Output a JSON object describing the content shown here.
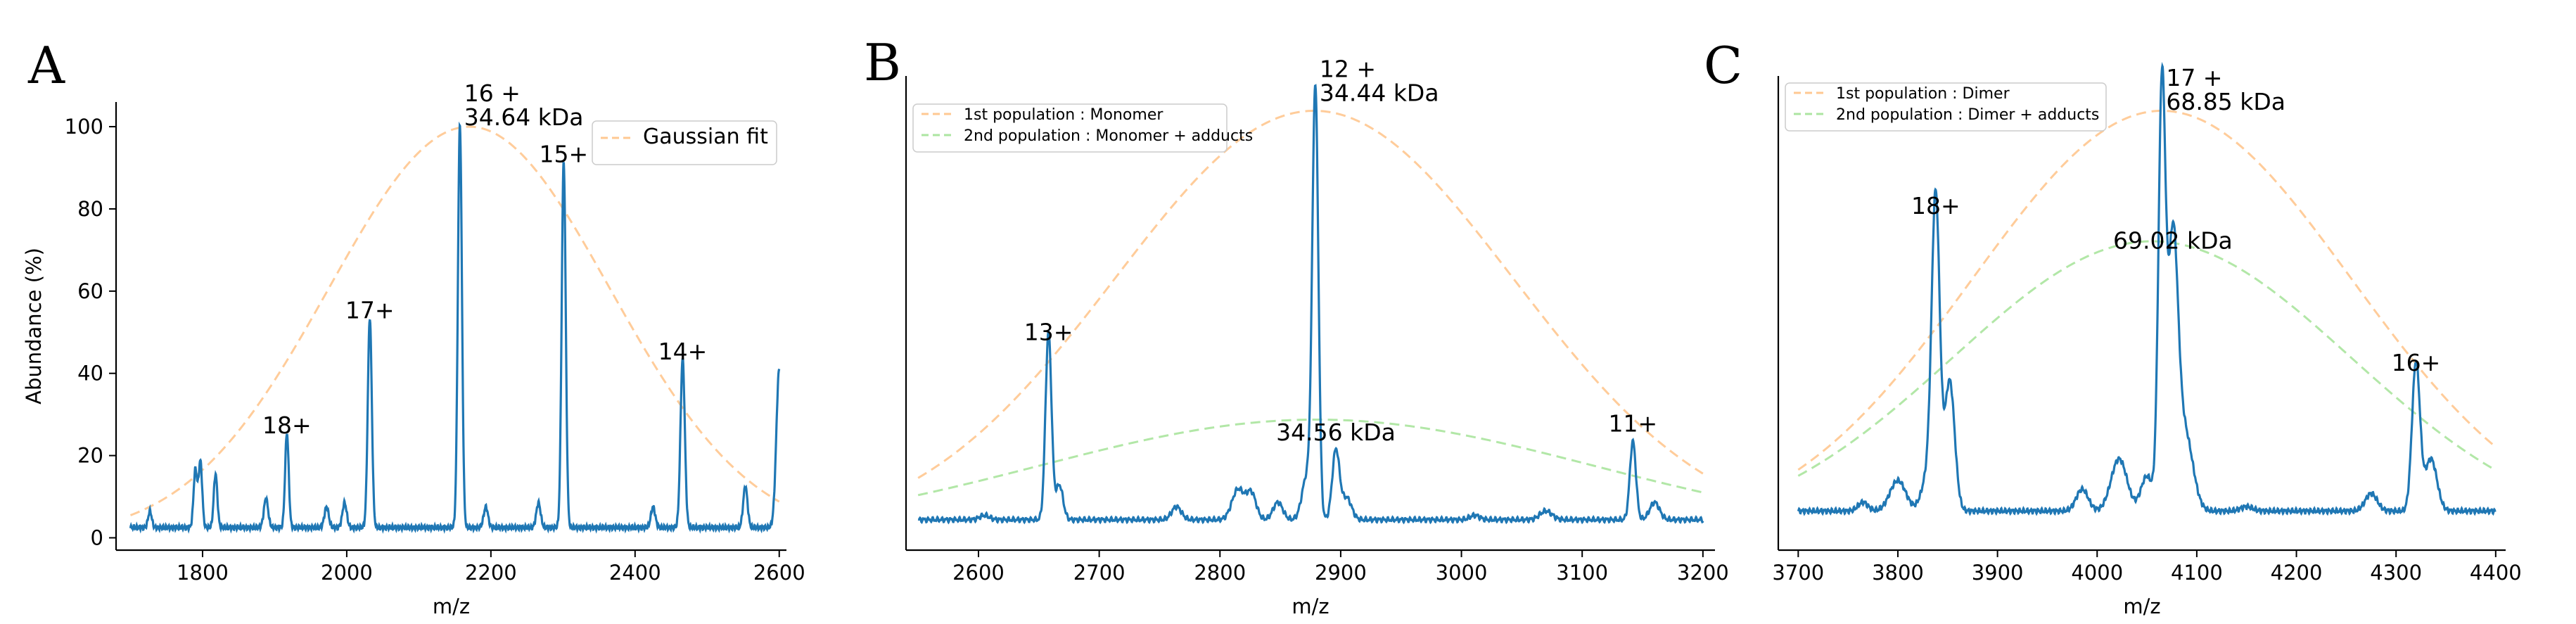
{
  "chart_data": [
    {
      "type": "line",
      "panel_label": "A",
      "xlabel": "m/z",
      "ylabel": "Abundance (%)",
      "xlim": [
        1680,
        2610
      ],
      "ylim": [
        -3,
        106
      ],
      "x_ticks": [
        1800,
        2000,
        2200,
        2400,
        2600
      ],
      "y_ticks": [
        0,
        20,
        40,
        60,
        80,
        100
      ],
      "legend_position": "top-right",
      "series": [
        {
          "name": "Gaussian fit",
          "style": "dashed",
          "color": "#ffbb78",
          "gaussian": {
            "amplitude": 100,
            "center": 2170,
            "sigma": 195,
            "baseline": 0,
            "x_range": [
              1700,
              2600
            ]
          }
        },
        {
          "name": "",
          "style": "solid",
          "color": "#1f77b4",
          "baseline": 2.5,
          "x_range": [
            1700,
            2600
          ],
          "peaks": [
            [
              1727,
              4,
              2.5
            ],
            [
              1790,
              14,
              2.5
            ],
            [
              1797,
              16,
              2.5
            ],
            [
              1818,
              13,
              2.5
            ],
            [
              1888,
              7,
              3
            ],
            [
              1917,
              23,
              2.5
            ],
            [
              1972,
              5,
              3
            ],
            [
              1997,
              6,
              3
            ],
            [
              2032,
              51,
              2.8
            ],
            [
              2157,
              98,
              2.8
            ],
            [
              2193,
              5,
              3
            ],
            [
              2266,
              6,
              3
            ],
            [
              2301,
              89,
              2.8
            ],
            [
              2425,
              5,
              3
            ],
            [
              2466,
              41,
              3
            ],
            [
              2553,
              10,
              3
            ]
          ],
          "tail_end": [
            2600,
            41
          ]
        }
      ],
      "annotations": [
        {
          "lines": [
            "16 +",
            "34.64 kDa"
          ],
          "x": 2157,
          "y": 98
        },
        {
          "lines": [
            "15+"
          ],
          "x": 2301,
          "y": 89
        },
        {
          "lines": [
            "17+"
          ],
          "x": 2032,
          "y": 51
        },
        {
          "lines": [
            "14+"
          ],
          "x": 2466,
          "y": 41
        },
        {
          "lines": [
            "18+"
          ],
          "x": 1917,
          "y": 23
        }
      ]
    },
    {
      "type": "line",
      "panel_label": "B",
      "xlabel": "m/z",
      "ylabel": "",
      "xlim": [
        2540,
        3210
      ],
      "ylim": [
        -3,
        106
      ],
      "x_ticks": [
        2600,
        2700,
        2800,
        2900,
        3000,
        3100,
        3200
      ],
      "y_ticks": [],
      "legend_position": "top-left",
      "series": [
        {
          "name": "1st population : Monomer",
          "style": "dashed",
          "color": "#ffbb78",
          "gaussian": {
            "amplitude": 98,
            "center": 2878,
            "sigma": 165,
            "baseline": 0,
            "x_range": [
              2550,
              3200
            ]
          }
        },
        {
          "name": "2nd population : Monomer + adducts",
          "style": "dashed",
          "color": "#98df8a",
          "gaussian": {
            "amplitude": 27,
            "center": 2880,
            "sigma": 230,
            "baseline": 0,
            "x_range": [
              2550,
              3200
            ]
          }
        },
        {
          "name": "",
          "style": "solid",
          "color": "#1f77b4",
          "baseline": 4,
          "x_range": [
            2550,
            3200
          ],
          "peaks": [
            [
              2605,
              1,
              4
            ],
            [
              2658,
              43,
              2.5
            ],
            [
              2667,
              8,
              3
            ],
            [
              2764,
              3,
              4
            ],
            [
              2815,
              7,
              5
            ],
            [
              2826,
              6,
              4
            ],
            [
              2848,
              4,
              4
            ],
            [
              2879,
              98,
              2.5
            ],
            [
              2872,
              10,
              4
            ],
            [
              2896,
              16,
              3
            ],
            [
              2905,
              5,
              4
            ],
            [
              3011,
              1,
              4
            ],
            [
              3070,
              2,
              5
            ],
            [
              3142,
              18,
              2.5
            ],
            [
              3160,
              4,
              4
            ]
          ]
        }
      ],
      "annotations": [
        {
          "lines": [
            "12 +",
            "34.44 kDa"
          ],
          "x": 2879,
          "y": 98
        },
        {
          "lines": [
            "13+"
          ],
          "x": 2658,
          "y": 43
        },
        {
          "lines": [
            "34.56 kDa"
          ],
          "x": 2896,
          "y": 20
        },
        {
          "lines": [
            "11+"
          ],
          "x": 3142,
          "y": 22
        }
      ]
    },
    {
      "type": "line",
      "panel_label": "C",
      "xlabel": "m/z",
      "ylabel": "",
      "xlim": [
        3680,
        4410
      ],
      "ylim": [
        -3,
        106
      ],
      "x_ticks": [
        3700,
        3800,
        3900,
        4000,
        4100,
        4200,
        4300,
        4400
      ],
      "y_ticks": [],
      "legend_position": "top-left",
      "series": [
        {
          "name": "1st population : Dimer",
          "style": "dashed",
          "color": "#ffbb78",
          "gaussian": {
            "amplitude": 98,
            "center": 4065,
            "sigma": 190,
            "baseline": 0,
            "x_range": [
              3700,
              4400
            ]
          }
        },
        {
          "name": "2nd population : Dimer + adducts",
          "style": "dashed",
          "color": "#98df8a",
          "gaussian": {
            "amplitude": 68,
            "center": 4055,
            "sigma": 200,
            "baseline": 0,
            "x_range": [
              3700,
              4400
            ]
          }
        },
        {
          "name": "",
          "style": "solid",
          "color": "#1f77b4",
          "baseline": 6,
          "x_range": [
            3700,
            4400
          ],
          "peaks": [
            [
              3765,
              2,
              5
            ],
            [
              3800,
              7,
              8
            ],
            [
              3838,
              70,
              4
            ],
            [
              3852,
              30,
              5
            ],
            [
              3830,
              8,
              6
            ],
            [
              3985,
              5,
              6
            ],
            [
              4022,
              12,
              8
            ],
            [
              4050,
              8,
              6
            ],
            [
              4065,
              96,
              3.5
            ],
            [
              4076,
              60,
              5
            ],
            [
              4088,
              18,
              8
            ],
            [
              4150,
              1,
              6
            ],
            [
              4275,
              4,
              6
            ],
            [
              4320,
              34,
              4
            ],
            [
              4335,
              12,
              6
            ]
          ]
        }
      ],
      "annotations": [
        {
          "lines": [
            "17 +",
            "68.85 kDa"
          ],
          "x": 4065,
          "y": 96
        },
        {
          "lines": [
            "18+"
          ],
          "x": 3838,
          "y": 72
        },
        {
          "lines": [
            "69.02 kDa"
          ],
          "x": 4076,
          "y": 64
        },
        {
          "lines": [
            "16+"
          ],
          "x": 4320,
          "y": 36
        }
      ]
    }
  ]
}
